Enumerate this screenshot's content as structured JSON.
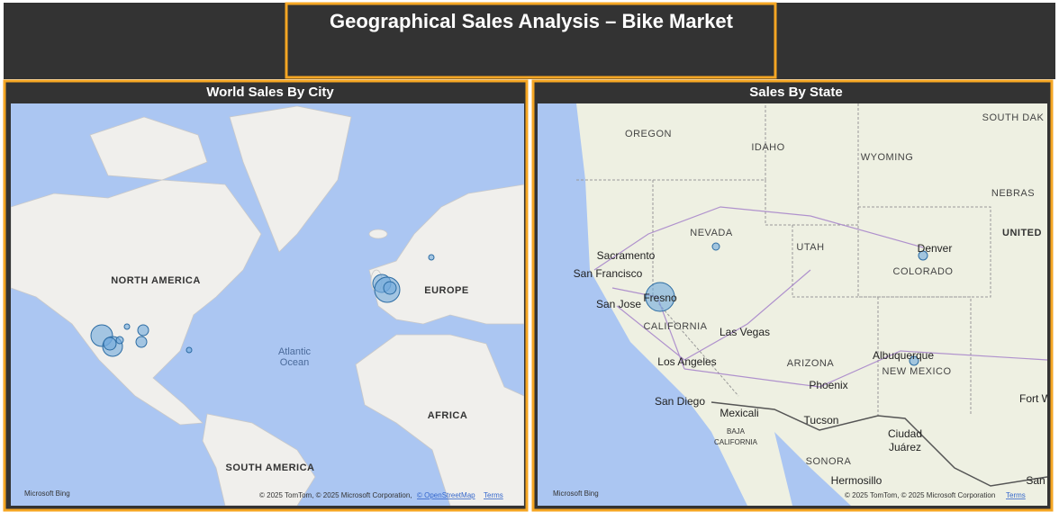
{
  "header": {
    "title": "Geographical Sales Analysis – Bike Market"
  },
  "panels": [
    {
      "title": "World Sales By City",
      "labels": [
        "NORTH AMERICA",
        "EUROPE",
        "AFRICA",
        "SOUTH AMERICA",
        "Atlantic",
        "Ocean"
      ],
      "logo": "Microsoft Bing",
      "attribution": "© 2025 TomTom, © 2025 Microsoft Corporation,",
      "osm": "© OpenStreetMap",
      "terms": "Terms"
    },
    {
      "title": "Sales By State",
      "labels": [
        "OREGON",
        "IDAHO",
        "WYOMING",
        "SOUTH DAK",
        "NEBRAS",
        "NEVADA",
        "UTAH",
        "Denver",
        "UNITED",
        "COLORADO",
        "Sacramento",
        "San Francisco",
        "San Jose",
        "Fresno",
        "CALIFORNIA",
        "Las Vegas",
        "Los Angeles",
        "ARIZONA",
        "Phoenix",
        "Albuquerque",
        "NEW MEXICO",
        "San Diego",
        "Mexicali",
        "Tucson",
        "BAJA",
        "CALIFORNIA",
        "Ciudad",
        "Juárez",
        "SONORA",
        "Hermosillo",
        "Fort W",
        "San"
      ],
      "logo": "Microsoft Bing",
      "attribution": "© 2025 TomTom, © 2025 Microsoft Corporation",
      "terms": "Terms"
    }
  ]
}
